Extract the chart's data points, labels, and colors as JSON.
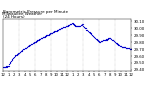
{
  "title": "Barometric Pressure per Minute\n(24 Hours)",
  "title_fontsize": 3.0,
  "title_loc": "left",
  "dot_color": "#0000cc",
  "dot_size": 0.8,
  "background_color": "#ffffff",
  "grid_color": "#aaaaaa",
  "ylim": [
    29.38,
    30.13
  ],
  "xlim": [
    0,
    1440
  ],
  "ytick_values": [
    30.1,
    30.0,
    29.9,
    29.8,
    29.7,
    29.6,
    29.5,
    29.4
  ],
  "ytick_labels": [
    "30.10",
    "30.00",
    "29.90",
    "29.80",
    "29.70",
    "29.60",
    "29.50",
    "29.40"
  ],
  "xtick_positions": [
    0,
    60,
    120,
    180,
    240,
    300,
    360,
    420,
    480,
    540,
    600,
    660,
    720,
    780,
    840,
    900,
    960,
    1020,
    1080,
    1140,
    1200,
    1260,
    1320,
    1380,
    1440
  ],
  "xtick_labels": [
    "12",
    "1",
    "2",
    "3",
    "4",
    "5",
    "6",
    "7",
    "8",
    "9",
    "10",
    "11",
    "12",
    "1",
    "2",
    "3",
    "4",
    "5",
    "6",
    "7",
    "8",
    "9",
    "10",
    "11",
    "12"
  ],
  "vgrid_positions": [
    180,
    360,
    540,
    720,
    900,
    1080,
    1260
  ],
  "tick_fontsize": 2.8,
  "left_label": "Milwaukee Weather",
  "left_label2": "per Minute"
}
